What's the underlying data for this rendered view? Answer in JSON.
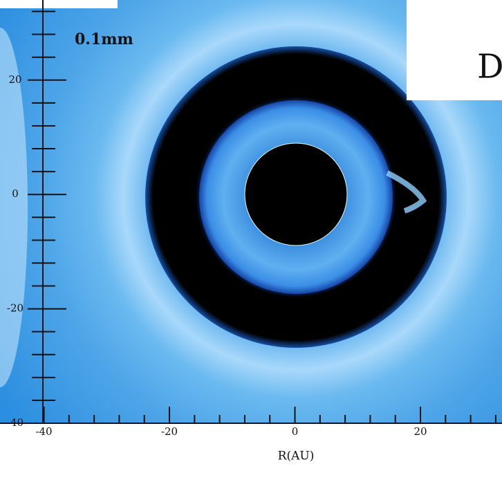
{
  "chart_data": {
    "type": "image",
    "annotation": "0.1mm",
    "panel_label": "D",
    "xlabel": "R(AU)",
    "xlim": [
      -47,
      33
    ],
    "ylim": [
      -40,
      34
    ],
    "xticks": [
      -40,
      -20,
      0,
      20
    ],
    "yticks": [
      -40,
      -20,
      0,
      20
    ],
    "xminorticks": [
      -36,
      -32,
      -28,
      -24,
      -16,
      -12,
      -8,
      -4,
      4,
      8,
      12,
      16,
      24,
      28,
      32
    ],
    "yminorticks": [
      -36,
      -32,
      -28,
      -24,
      -16,
      -12,
      -8,
      -4,
      4,
      8,
      12,
      16,
      24,
      28,
      32
    ]
  }
}
